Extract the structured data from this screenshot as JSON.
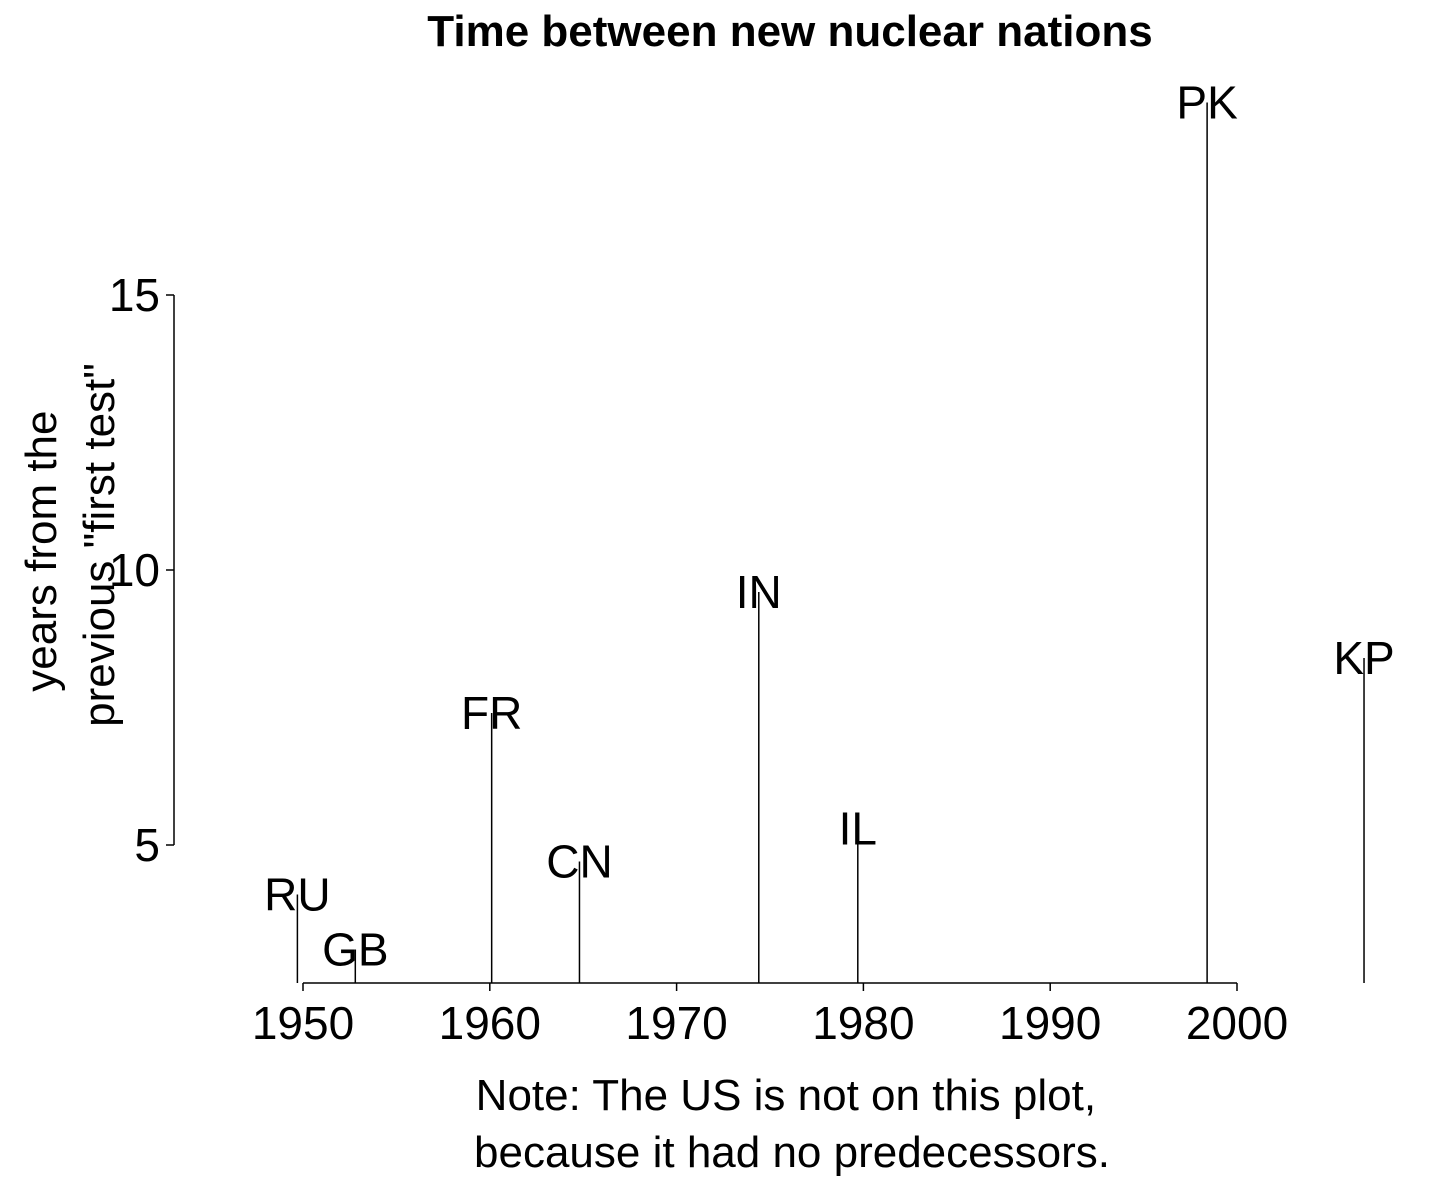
{
  "chart_data": {
    "type": "stem",
    "title": "Time between new nuclear nations",
    "ylabel": [
      "years from the",
      "previous \"first test\""
    ],
    "xlabel": [
      "Note: The US is not on this plot,",
      "because it had no predecessors."
    ],
    "xlim": [
      1949.7,
      2007
    ],
    "ylim": [
      2.5,
      18.5
    ],
    "xticks": [
      1950,
      1960,
      1970,
      1980,
      1990,
      2000
    ],
    "yticks": [
      5,
      10,
      15
    ],
    "points": [
      {
        "label": "RU",
        "x": 1949.7,
        "y": 4.1
      },
      {
        "label": "GB",
        "x": 1952.8,
        "y": 3.1
      },
      {
        "label": "FR",
        "x": 1960.1,
        "y": 7.4
      },
      {
        "label": "CN",
        "x": 1964.8,
        "y": 4.7
      },
      {
        "label": "IN",
        "x": 1974.4,
        "y": 9.6
      },
      {
        "label": "IL",
        "x": 1979.7,
        "y": 5.3
      },
      {
        "label": "PK",
        "x": 1998.4,
        "y": 18.5
      },
      {
        "label": "KP",
        "x": 2006.8,
        "y": 8.4
      }
    ]
  }
}
